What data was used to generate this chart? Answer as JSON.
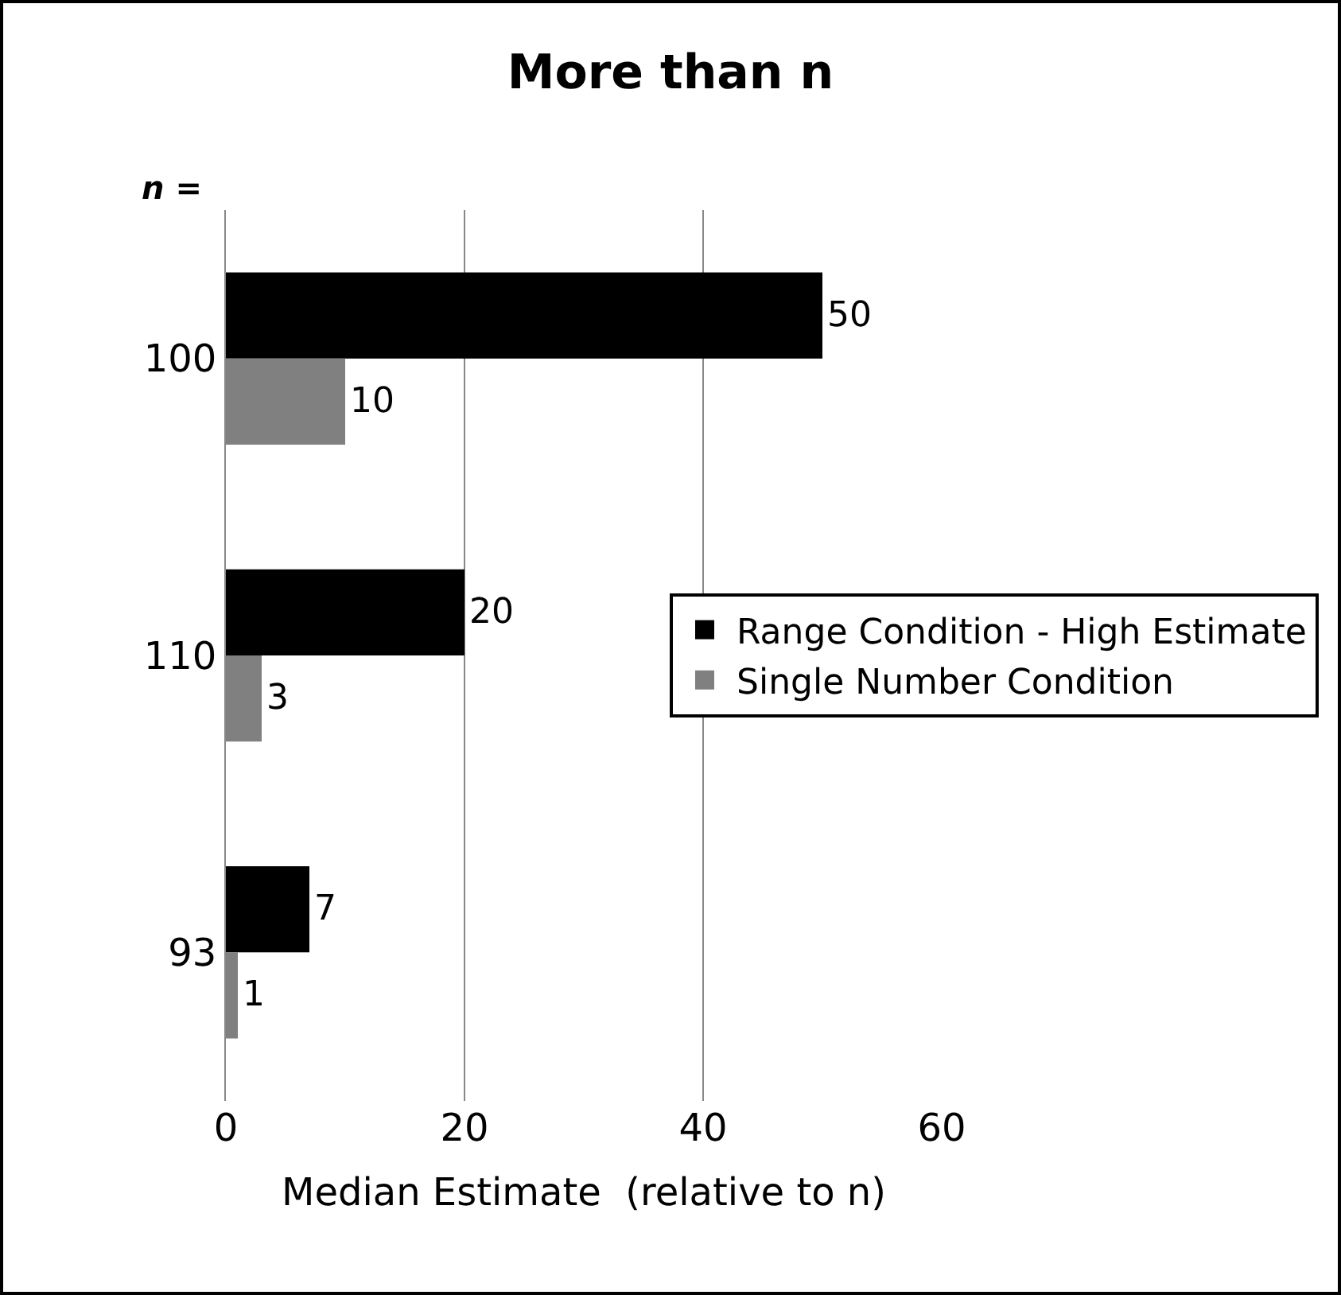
{
  "chart_data": {
    "type": "bar",
    "orientation": "horizontal",
    "title": "More than n",
    "xlabel": "Median Estimate  (relative to n)",
    "annotations": [
      "n ="
    ],
    "categories": [
      "100",
      "110",
      "93"
    ],
    "series": [
      {
        "name": "Range Condition - High Estimate",
        "color": "#000000",
        "values": [
          50,
          20,
          7
        ]
      },
      {
        "name": "Single Number Condition",
        "color": "#808080",
        "values": [
          10,
          3,
          1
        ]
      }
    ],
    "xlim": [
      0,
      60
    ],
    "xticks": [
      0,
      20,
      40,
      60
    ],
    "grid": "x",
    "legend": "right",
    "data_labels": true
  }
}
